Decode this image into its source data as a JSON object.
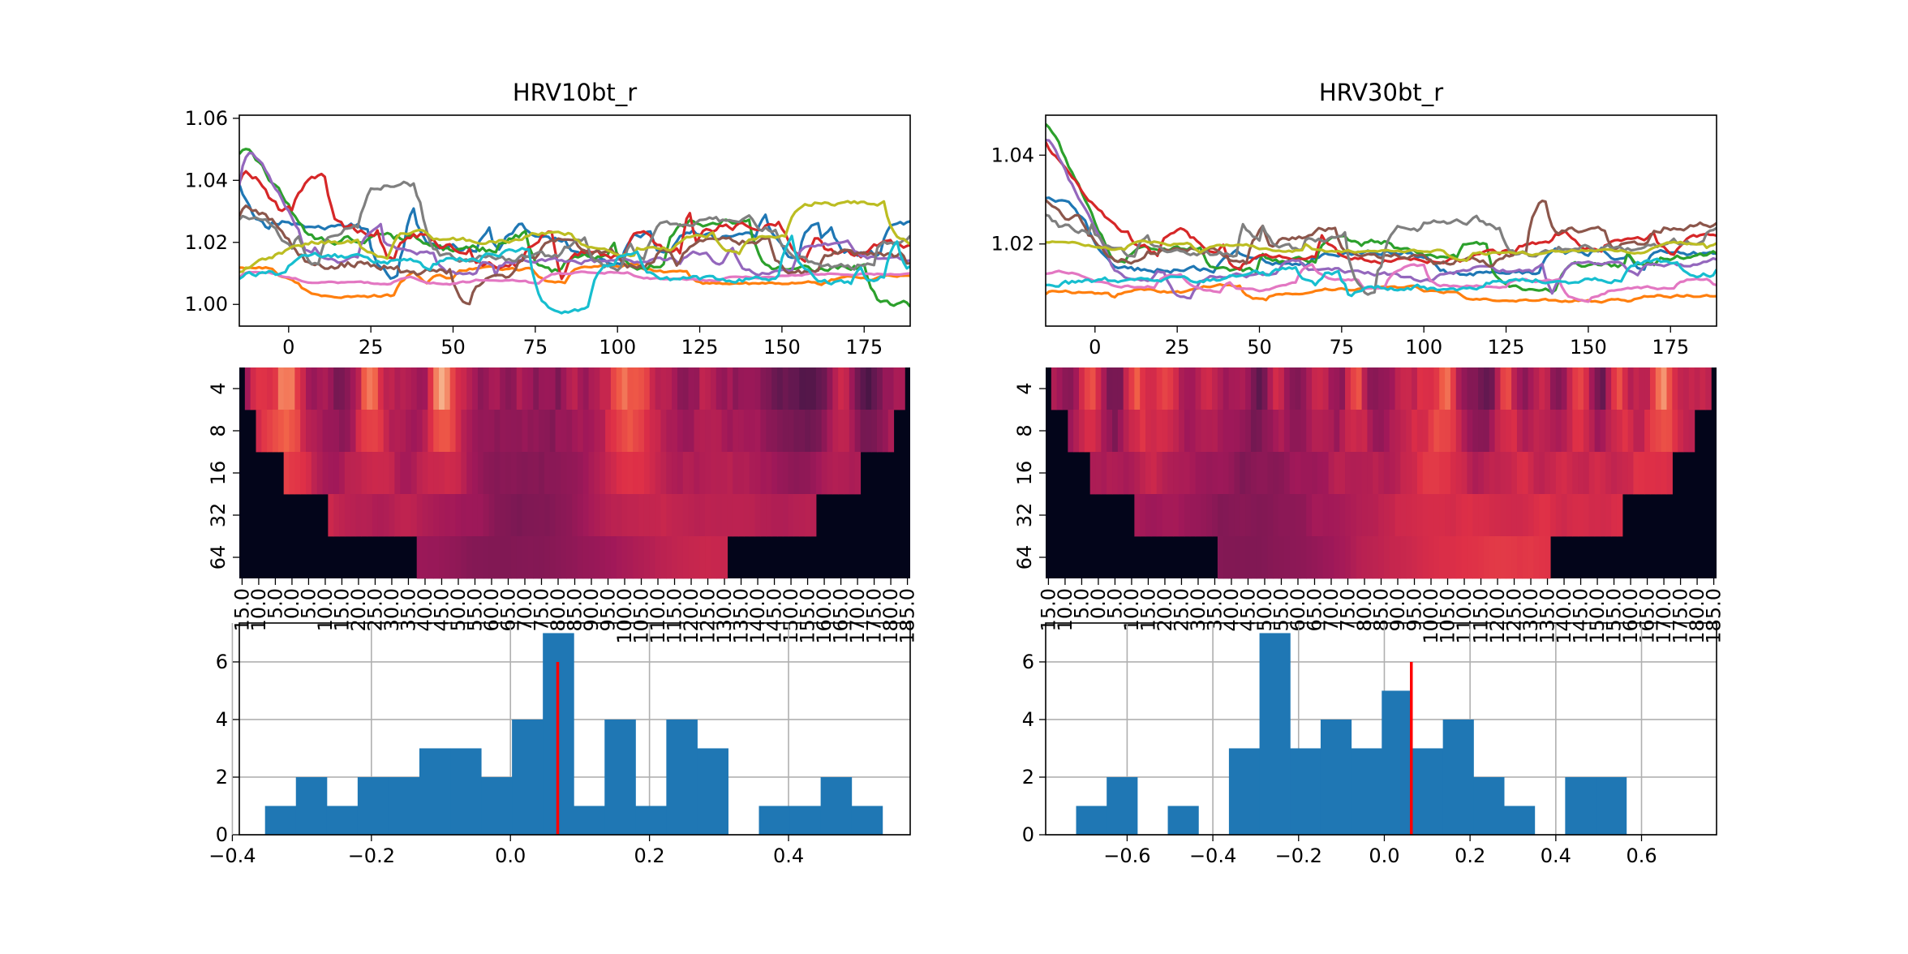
{
  "figure": {
    "background": "#ffffff"
  },
  "colors": {
    "series": [
      "#1f77b4",
      "#ff7f0e",
      "#2ca02c",
      "#d62728",
      "#9467bd",
      "#8c564b",
      "#e377c2",
      "#7f7f7f",
      "#bcbd22",
      "#17becf"
    ],
    "hist_bar": "#1f77b4",
    "hist_marker": "#ff0000",
    "heat_low": "#03051a",
    "heat_high": "#faebdd"
  },
  "chart_data": [
    {
      "id": "left-lines",
      "type": "line",
      "title": "HRV10bt_r",
      "xlim": [
        -15,
        189
      ],
      "ylim": [
        0.993,
        1.061
      ],
      "xticks": [
        0,
        25,
        50,
        75,
        100,
        125,
        150,
        175
      ],
      "yticks": [
        1.0,
        1.02,
        1.04,
        1.06
      ],
      "ytick_labels": [
        "1.00",
        "1.02",
        "1.04",
        "1.06"
      ],
      "x_range": [
        -15,
        189
      ],
      "n_series": 10,
      "series_start": [
        1.042,
        1.012,
        1.046,
        1.036,
        1.028,
        1.025,
        1.007,
        1.026,
        1.009,
        1.008
      ],
      "series_level": [
        1.021,
        1.009,
        1.017,
        1.019,
        1.015,
        1.017,
        1.008,
        1.02,
        1.02,
        1.012
      ],
      "series_spread": [
        0.008,
        0.003,
        0.008,
        0.009,
        0.005,
        0.009,
        0.002,
        0.008,
        0.005,
        0.006
      ],
      "early_peak": [
        1.03,
        1.012,
        1.052,
        1.048,
        1.058,
        1.033,
        1.012,
        1.03,
        1.012,
        1.01
      ]
    },
    {
      "id": "right-lines",
      "type": "line",
      "title": "HRV30bt_r",
      "xlim": [
        -15,
        189
      ],
      "ylim": [
        1.0015,
        1.049
      ],
      "xticks": [
        0,
        25,
        50,
        75,
        100,
        125,
        150,
        175
      ],
      "yticks": [
        1.02,
        1.04
      ],
      "ytick_labels": [
        "1.02",
        "1.04"
      ],
      "x_range": [
        -15,
        189
      ],
      "n_series": 10,
      "series_start": [
        1.03,
        1.008,
        1.047,
        1.045,
        1.043,
        1.03,
        1.013,
        1.027,
        1.02,
        1.01
      ],
      "series_level": [
        1.016,
        1.009,
        1.018,
        1.02,
        1.014,
        1.02,
        1.011,
        1.021,
        1.019,
        1.012
      ],
      "series_spread": [
        0.004,
        0.002,
        0.004,
        0.004,
        0.003,
        0.005,
        0.002,
        0.005,
        0.002,
        0.004
      ],
      "early_peak": [
        1.032,
        1.01,
        1.046,
        1.04,
        1.044,
        1.028,
        1.014,
        1.025,
        1.021,
        1.011
      ]
    },
    {
      "id": "left-heatmap",
      "type": "heatmap",
      "row_labels": [
        "4",
        "8",
        "16",
        "32",
        "64"
      ],
      "column_tick_labels": [
        "15.0",
        "10.0",
        "5.0",
        "0.0",
        "5.0",
        "10.0",
        "15.0",
        "20.0",
        "25.0",
        "30.0",
        "35.0",
        "40.0",
        "45.0",
        "50.0",
        "55.0",
        "60.0",
        "65.0",
        "70.0",
        "75.0",
        "80.0",
        "85.0",
        "90.0",
        "95.0",
        "100.0",
        "105.0",
        "110.0",
        "115.0",
        "120.0",
        "125.0",
        "130.0",
        "135.0",
        "140.0",
        "145.0",
        "150.0",
        "155.0",
        "160.0",
        "165.0",
        "170.0",
        "175.0",
        "180.0",
        "185.0"
      ],
      "n_columns": 121,
      "valid_columns": [
        [
          1,
          119
        ],
        [
          3,
          117
        ],
        [
          8,
          111
        ],
        [
          16,
          103
        ],
        [
          32,
          87
        ]
      ]
    },
    {
      "id": "right-heatmap",
      "type": "heatmap",
      "row_labels": [
        "4",
        "8",
        "16",
        "32",
        "64"
      ],
      "column_tick_labels": [
        "15.0",
        "10.0",
        "5.0",
        "0.0",
        "5.0",
        "10.0",
        "15.0",
        "20.0",
        "25.0",
        "30.0",
        "35.0",
        "40.0",
        "45.0",
        "50.0",
        "55.0",
        "60.0",
        "65.0",
        "70.0",
        "75.0",
        "80.0",
        "85.0",
        "90.0",
        "95.0",
        "100.0",
        "105.0",
        "110.0",
        "115.0",
        "120.0",
        "125.0",
        "130.0",
        "135.0",
        "140.0",
        "145.0",
        "150.0",
        "155.0",
        "160.0",
        "165.0",
        "170.0",
        "175.0",
        "180.0",
        "185.0"
      ],
      "n_columns": 121,
      "valid_columns": [
        [
          1,
          119
        ],
        [
          4,
          116
        ],
        [
          8,
          112
        ],
        [
          16,
          103
        ],
        [
          31,
          90
        ]
      ]
    },
    {
      "id": "left-hist",
      "type": "bar",
      "xlim": [
        -0.39,
        0.575
      ],
      "ylim": [
        0,
        7.35
      ],
      "xticks": [
        -0.4,
        -0.2,
        0.0,
        0.2,
        0.4
      ],
      "xtick_labels": [
        "−0.4",
        "−0.2",
        "0.0",
        "0.2",
        "0.4"
      ],
      "yticks": [
        0,
        2,
        4,
        6
      ],
      "ytick_labels": [
        "0",
        "2",
        "4",
        "6"
      ],
      "bin_start": -0.353,
      "bin_width": 0.0444,
      "counts": [
        1,
        2,
        1,
        2,
        2,
        3,
        3,
        2,
        4,
        7,
        1,
        4,
        1,
        4,
        3,
        0,
        1,
        1,
        2,
        1
      ],
      "marker_x": 0.068,
      "marker_height": 6
    },
    {
      "id": "right-hist",
      "type": "bar",
      "xlim": [
        -0.79,
        0.775
      ],
      "ylim": [
        0,
        7.35
      ],
      "xticks": [
        -0.6,
        -0.4,
        -0.2,
        0.0,
        0.2,
        0.4,
        0.6
      ],
      "xtick_labels": [
        "−0.6",
        "−0.4",
        "−0.2",
        "0.0",
        "0.2",
        "0.4",
        "0.6"
      ],
      "yticks": [
        0,
        2,
        4,
        6
      ],
      "ytick_labels": [
        "0",
        "2",
        "4",
        "6"
      ],
      "bin_start": -0.719,
      "bin_width": 0.0713,
      "counts": [
        1,
        2,
        0,
        1,
        0,
        3,
        7,
        3,
        4,
        3,
        5,
        3,
        4,
        2,
        1,
        0,
        2,
        2
      ],
      "marker_x": 0.063,
      "marker_height": 6
    }
  ]
}
